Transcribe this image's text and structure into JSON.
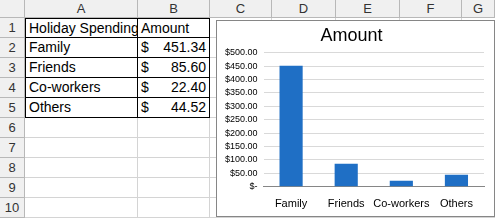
{
  "chart_data": {
    "type": "bar",
    "title": "Amount",
    "categories": [
      "Family",
      "Friends",
      "Co-workers",
      "Others"
    ],
    "values": [
      451.34,
      85.6,
      22.4,
      44.52
    ],
    "color": "#1f6fc5",
    "ylim": [
      0,
      500
    ],
    "yticks": [
      {
        "value": 0,
        "label": "$-"
      },
      {
        "value": 50,
        "label": "$50.00"
      },
      {
        "value": 100,
        "label": "$100.00"
      },
      {
        "value": 150,
        "label": "$150.00"
      },
      {
        "value": 200,
        "label": "$200.00"
      },
      {
        "value": 250,
        "label": "$250.00"
      },
      {
        "value": 300,
        "label": "$300.00"
      },
      {
        "value": 350,
        "label": "$350.00"
      },
      {
        "value": 400,
        "label": "$400.00"
      },
      {
        "value": 450,
        "label": "$450.00"
      },
      {
        "value": 500,
        "label": "$500.00"
      }
    ],
    "grid": true
  },
  "spreadsheet": {
    "columns": [
      "A",
      "B",
      "C",
      "D",
      "E",
      "F",
      "G"
    ],
    "rows": [
      1,
      2,
      3,
      4,
      5,
      6,
      7,
      8,
      9,
      10
    ],
    "cells": [
      [
        "Holiday Spending",
        "Amount"
      ],
      [
        "Family",
        "$451.34"
      ],
      [
        "Friends",
        "$ 85.60"
      ],
      [
        "Co-workers",
        "$ 22.40"
      ],
      [
        "Others",
        "$ 44.52"
      ]
    ]
  }
}
